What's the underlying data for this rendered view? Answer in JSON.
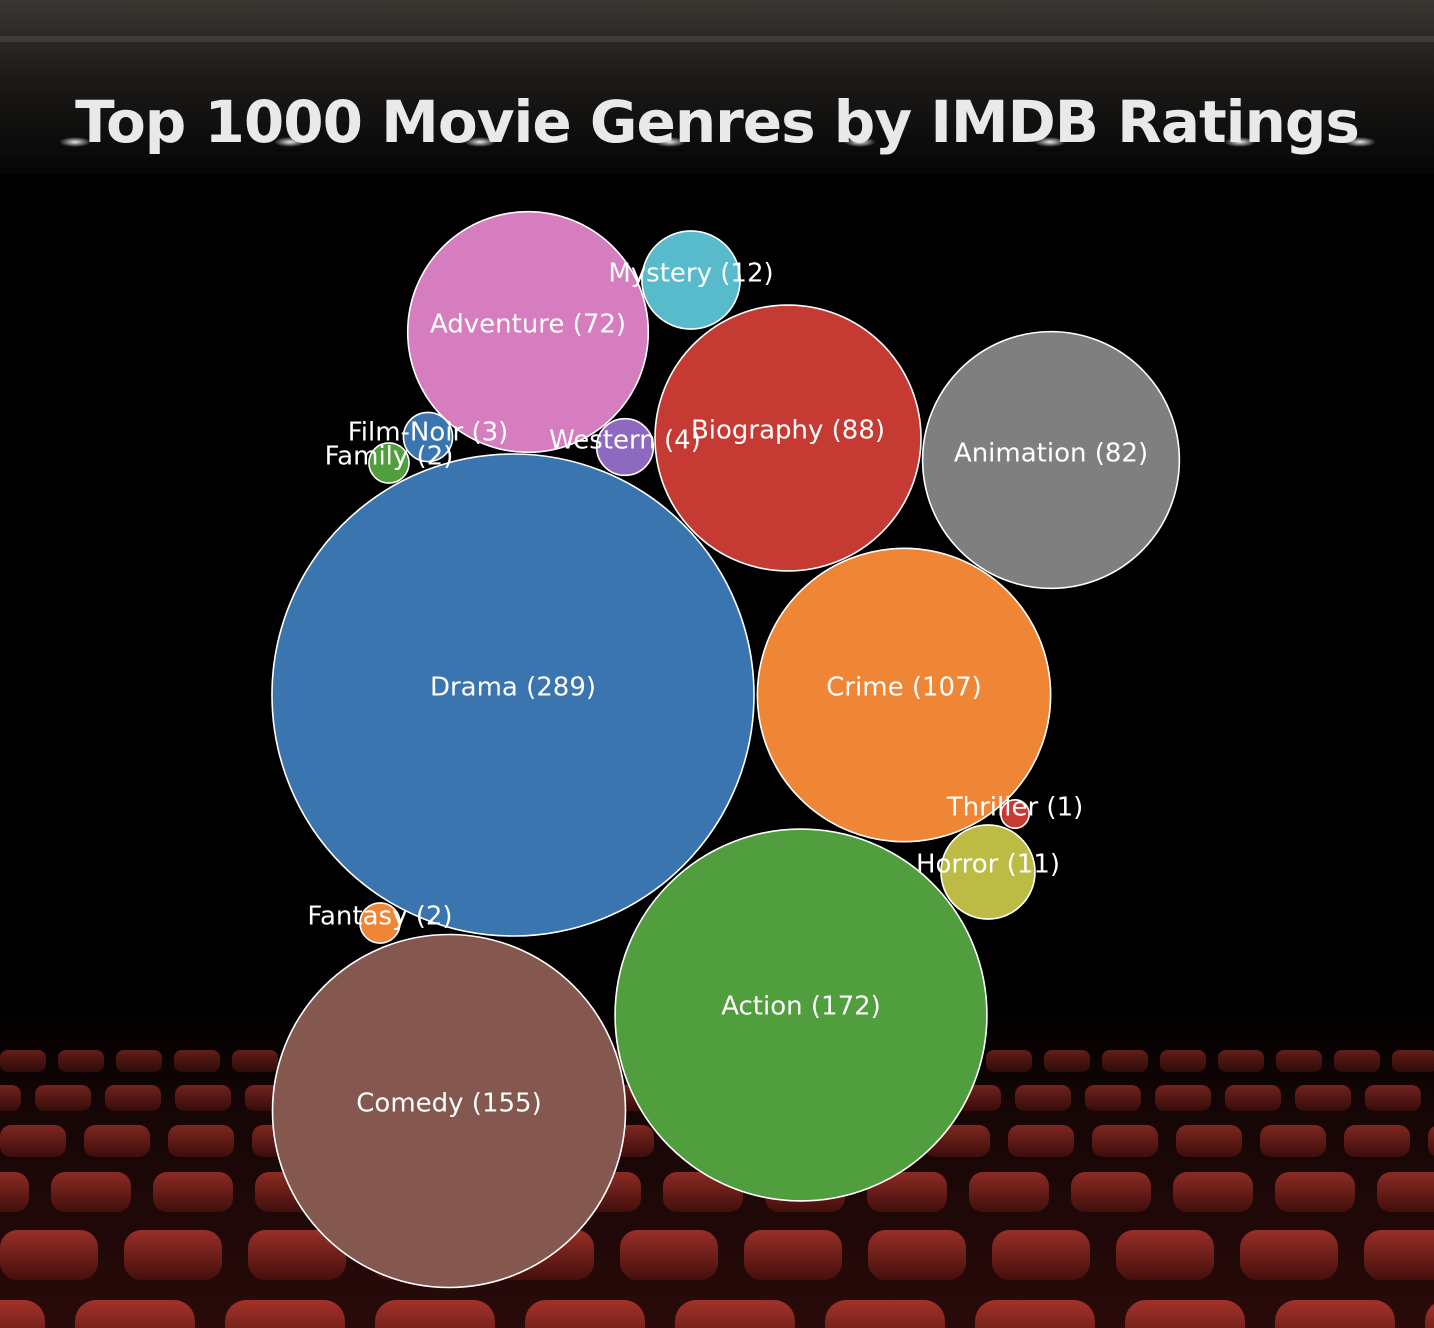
{
  "chart_data": {
    "type": "bubble",
    "title": "Top 1000 Movie Genres by IMDB Ratings",
    "label_format": "{name} ({count})",
    "series": [
      {
        "name": "Drama",
        "count": 289,
        "color": "#3b75af"
      },
      {
        "name": "Action",
        "count": 172,
        "color": "#519e3e"
      },
      {
        "name": "Comedy",
        "count": 155,
        "color": "#84584e"
      },
      {
        "name": "Crime",
        "count": 107,
        "color": "#ef8636"
      },
      {
        "name": "Biography",
        "count": 88,
        "color": "#c53a32"
      },
      {
        "name": "Animation",
        "count": 82,
        "color": "#7f7f7f"
      },
      {
        "name": "Adventure",
        "count": 72,
        "color": "#d57dbf"
      },
      {
        "name": "Mystery",
        "count": 12,
        "color": "#58bbcc"
      },
      {
        "name": "Horror",
        "count": 11,
        "color": "#bcbc45"
      },
      {
        "name": "Western",
        "count": 4,
        "color": "#8d6ac0"
      },
      {
        "name": "Film-Noir",
        "count": 3,
        "color": "#3b75af"
      },
      {
        "name": "Family",
        "count": 2,
        "color": "#519e3e"
      },
      {
        "name": "Fantasy",
        "count": 2,
        "color": "#ef8636"
      },
      {
        "name": "Thriller",
        "count": 1,
        "color": "#c53a32"
      }
    ]
  }
}
